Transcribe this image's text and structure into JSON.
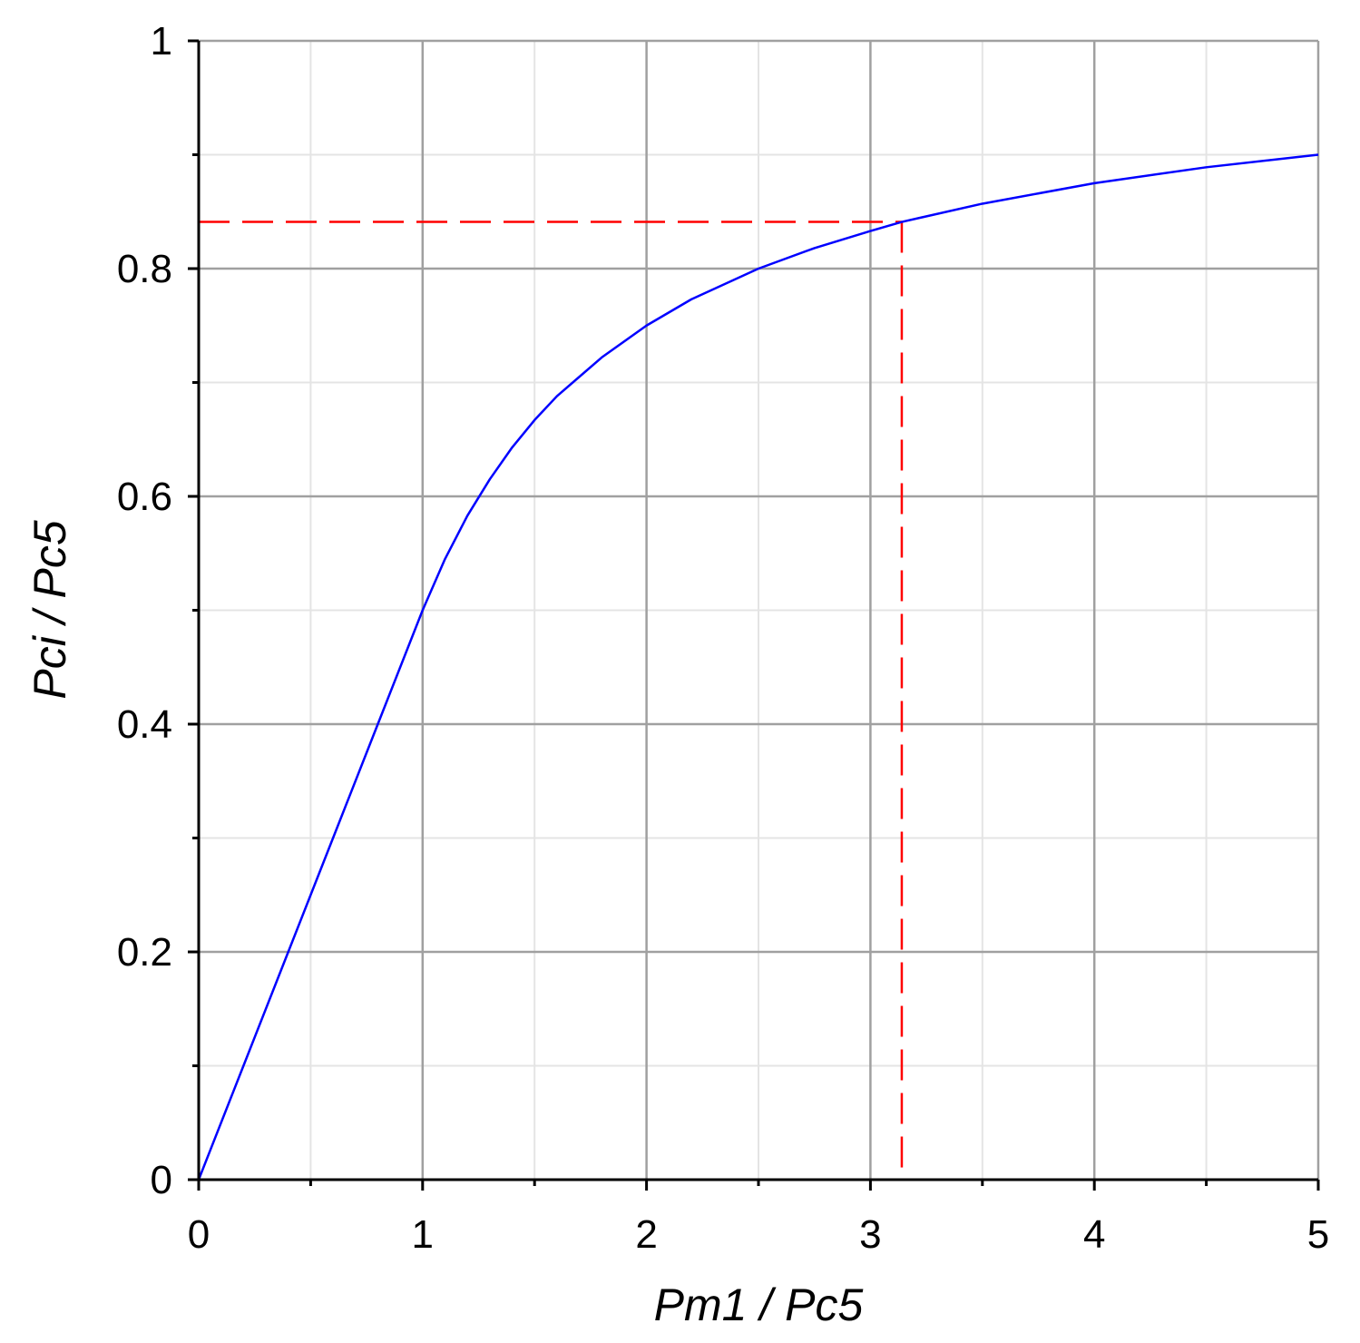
{
  "chart_data": {
    "type": "line",
    "xlabel": "Pm1 / Pc5",
    "ylabel": "Pci / Pc5",
    "xlim": [
      0,
      5
    ],
    "ylim": [
      0,
      1
    ],
    "x_ticks": [
      0,
      1,
      2,
      3,
      4,
      5
    ],
    "x_tick_labels": [
      "0",
      "1",
      "2",
      "3",
      "4",
      "5"
    ],
    "y_ticks": [
      0,
      0.2,
      0.4,
      0.6,
      0.8,
      1
    ],
    "y_tick_labels": [
      "0",
      "0.2",
      "0.4",
      "0.6",
      "0.8",
      "1"
    ],
    "x_minor_step": 0.5,
    "y_minor_step": 0.1,
    "grid": true,
    "colors": {
      "curve": "#0000ff",
      "marker": "#ff0000",
      "major_grid": "#a0a0a0",
      "minor_grid": "#e4e4e4",
      "axis": "#000000"
    },
    "series": [
      {
        "x": [
          0,
          0.2,
          0.4,
          0.6,
          0.8,
          1.0,
          1.1,
          1.2,
          1.3,
          1.4,
          1.5,
          1.6,
          1.8,
          2.0,
          2.2,
          2.5,
          2.75,
          3.0,
          3.14,
          3.5,
          4.0,
          4.5,
          5.0
        ],
        "y": [
          0,
          0.1,
          0.2,
          0.3,
          0.4,
          0.5,
          0.545,
          0.583,
          0.615,
          0.643,
          0.667,
          0.688,
          0.722,
          0.75,
          0.773,
          0.8,
          0.818,
          0.833,
          0.841,
          0.857,
          0.875,
          0.889,
          0.9
        ]
      }
    ],
    "marker": {
      "x": 3.14,
      "y": 0.841
    }
  }
}
